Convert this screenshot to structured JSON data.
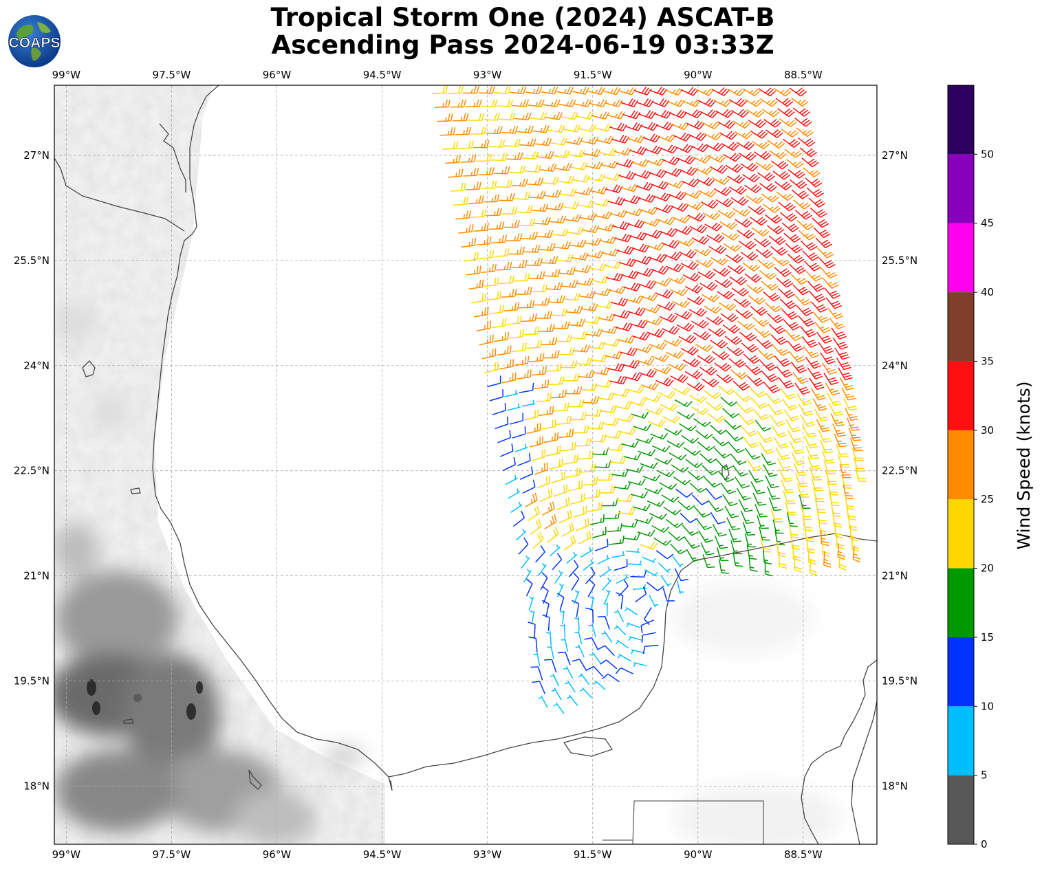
{
  "title": {
    "line1": "Tropical Storm One (2024) ASCAT-B",
    "line2": "Ascending Pass 2024-06-19 03:33Z"
  },
  "logo": {
    "text": "COAPS",
    "icon": "globe-logo-icon"
  },
  "map": {
    "projection": "plate-carree",
    "lon_range": [
      -99.17,
      -87.45
    ],
    "lat_range": [
      17.17,
      28.0
    ],
    "grid": true,
    "lon_ticks": [
      {
        "value": -99,
        "label": "99°W"
      },
      {
        "value": -97.5,
        "label": "97.5°W"
      },
      {
        "value": -96,
        "label": "96°W"
      },
      {
        "value": -94.5,
        "label": "94.5°W"
      },
      {
        "value": -93,
        "label": "93°W"
      },
      {
        "value": -91.5,
        "label": "91.5°W"
      },
      {
        "value": -90,
        "label": "90°W"
      },
      {
        "value": -88.5,
        "label": "88.5°W"
      }
    ],
    "lat_ticks": [
      {
        "value": 27,
        "label": "27°N"
      },
      {
        "value": 25.5,
        "label": "25.5°N"
      },
      {
        "value": 24,
        "label": "24°N"
      },
      {
        "value": 22.5,
        "label": "22.5°N"
      },
      {
        "value": 21,
        "label": "21°N"
      },
      {
        "value": 19.5,
        "label": "19.5°N"
      },
      {
        "value": 18,
        "label": "18°N"
      }
    ],
    "layers": [
      "grayscale terrain",
      "coastlines",
      "country borders",
      "ASCAT wind barbs"
    ]
  },
  "colorbar": {
    "label": "Wind Speed (knots)",
    "levels": [
      {
        "min": 0,
        "max": 5,
        "color": "#585858"
      },
      {
        "min": 5,
        "max": 10,
        "color": "#00bfff"
      },
      {
        "min": 10,
        "max": 15,
        "color": "#0033ff"
      },
      {
        "min": 15,
        "max": 20,
        "color": "#009900"
      },
      {
        "min": 20,
        "max": 25,
        "color": "#ffd700"
      },
      {
        "min": 25,
        "max": 30,
        "color": "#ff8c00"
      },
      {
        "min": 30,
        "max": 35,
        "color": "#ff1010"
      },
      {
        "min": 35,
        "max": 40,
        "color": "#7f3f2a"
      },
      {
        "min": 40,
        "max": 45,
        "color": "#ff00ee"
      },
      {
        "min": 45,
        "max": 50,
        "color": "#8800bb"
      },
      {
        "min": 50,
        "max": 55,
        "color": "#2d0060"
      }
    ],
    "ticks": [
      "0",
      "5",
      "10",
      "15",
      "20",
      "25",
      "30",
      "35",
      "40",
      "45",
      "50"
    ]
  }
}
